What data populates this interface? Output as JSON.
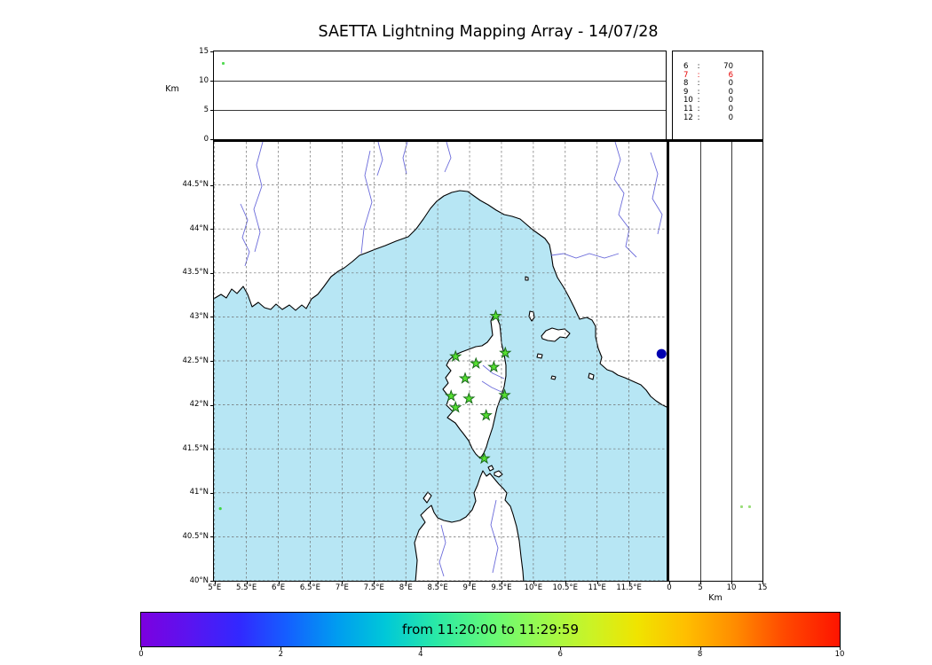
{
  "title": "SAETTA Lightning Mapping Array - 14/07/28",
  "alt_label": "Km",
  "counts_panel": {
    "sep": ":",
    "rows": [
      {
        "id": "6",
        "value": "70",
        "color": "#000000"
      },
      {
        "id": "7",
        "value": "6",
        "color": "#e60000"
      },
      {
        "id": "8",
        "value": "0",
        "color": "#000000"
      },
      {
        "id": "9",
        "value": "0",
        "color": "#000000"
      },
      {
        "id": "10",
        "value": "0",
        "color": "#000000"
      },
      {
        "id": "11",
        "value": "0",
        "color": "#000000"
      },
      {
        "id": "12",
        "value": "0",
        "color": "#000000"
      }
    ]
  },
  "colorbar": {
    "label": "from 11:20:00 to 11:29:59"
  },
  "chart_data": {
    "type": "scatter",
    "title": "SAETTA Lightning Mapping Array - 14/07/28",
    "map": {
      "lon_range": [
        4.99,
        12.09
      ],
      "lat_range": [
        40.0,
        44.99
      ],
      "lon_ticks": [
        5,
        5.5,
        6,
        6.5,
        7,
        7.5,
        8,
        8.5,
        9,
        9.5,
        10,
        10.5,
        11,
        11.5
      ],
      "lon_tick_labels": [
        "5°E",
        "5.5°E",
        "6°E",
        "6.5°E",
        "7°E",
        "7.5°E",
        "8°E",
        "8.5°E",
        "9°E",
        "9.5°E",
        "10°E",
        "10.5°E",
        "11°E",
        "11.5°E"
      ],
      "lat_ticks": [
        40,
        40.5,
        41,
        41.5,
        42,
        42.5,
        43,
        43.5,
        44,
        44.5
      ],
      "lat_tick_labels": [
        "40°N",
        "40.5°N",
        "41°N",
        "41.5°N",
        "42°N",
        "42.5°N",
        "43°N",
        "43.5°N",
        "44°N",
        "44.5°N"
      ],
      "grid": "dashed",
      "sea_color": "#b7e6f4",
      "land_color": "#ffffff"
    },
    "alt_axis": {
      "range": [
        0,
        15
      ],
      "ticks": [
        0,
        5,
        10,
        15
      ],
      "grid_ticks": [
        5,
        10
      ],
      "label": "Km"
    },
    "stations": [
      {
        "lon": 9.41,
        "lat": 43.01
      },
      {
        "lon": 8.78,
        "lat": 42.55
      },
      {
        "lon": 9.1,
        "lat": 42.47
      },
      {
        "lon": 9.38,
        "lat": 42.43
      },
      {
        "lon": 9.56,
        "lat": 42.59
      },
      {
        "lon": 8.93,
        "lat": 42.3
      },
      {
        "lon": 8.71,
        "lat": 42.1
      },
      {
        "lon": 8.78,
        "lat": 41.97
      },
      {
        "lon": 8.99,
        "lat": 42.07
      },
      {
        "lon": 9.26,
        "lat": 41.88
      },
      {
        "lon": 9.55,
        "lat": 42.11
      },
      {
        "lon": 9.23,
        "lat": 41.39
      }
    ],
    "station_marker": {
      "shape": "star",
      "fill": "#55e030",
      "edge": "#1b6b1b"
    },
    "events": [
      {
        "panel": "map",
        "lon": 12.01,
        "lat": 42.58,
        "color": "#0000b0",
        "size": 5.5
      },
      {
        "panel": "map",
        "lon": 5.09,
        "lat": 40.82,
        "color": "#3fd63f",
        "size": 1.6
      },
      {
        "panel": "alt-lon",
        "lon": 5.13,
        "alt_km": 13.0,
        "color": "#3fd63f"
      },
      {
        "panel": "alt-lat",
        "alt_km": 11.6,
        "lat": 40.84,
        "color": "#8fd96a"
      },
      {
        "panel": "alt-lat",
        "alt_km": 12.9,
        "lat": 40.84,
        "color": "#8fd96a"
      }
    ],
    "station_counts": {
      "6": 70,
      "7": 6,
      "8": 0,
      "9": 0,
      "10": 0,
      "11": 0,
      "12": 0
    },
    "colorbar": {
      "label": "from 11:20:00 to 11:29:59",
      "time_start": "11:20:00",
      "time_end": "11:29:59",
      "range": [
        0,
        10
      ],
      "ticks": [
        0,
        2,
        4,
        6,
        8,
        10
      ],
      "colormap": "rainbow"
    }
  }
}
